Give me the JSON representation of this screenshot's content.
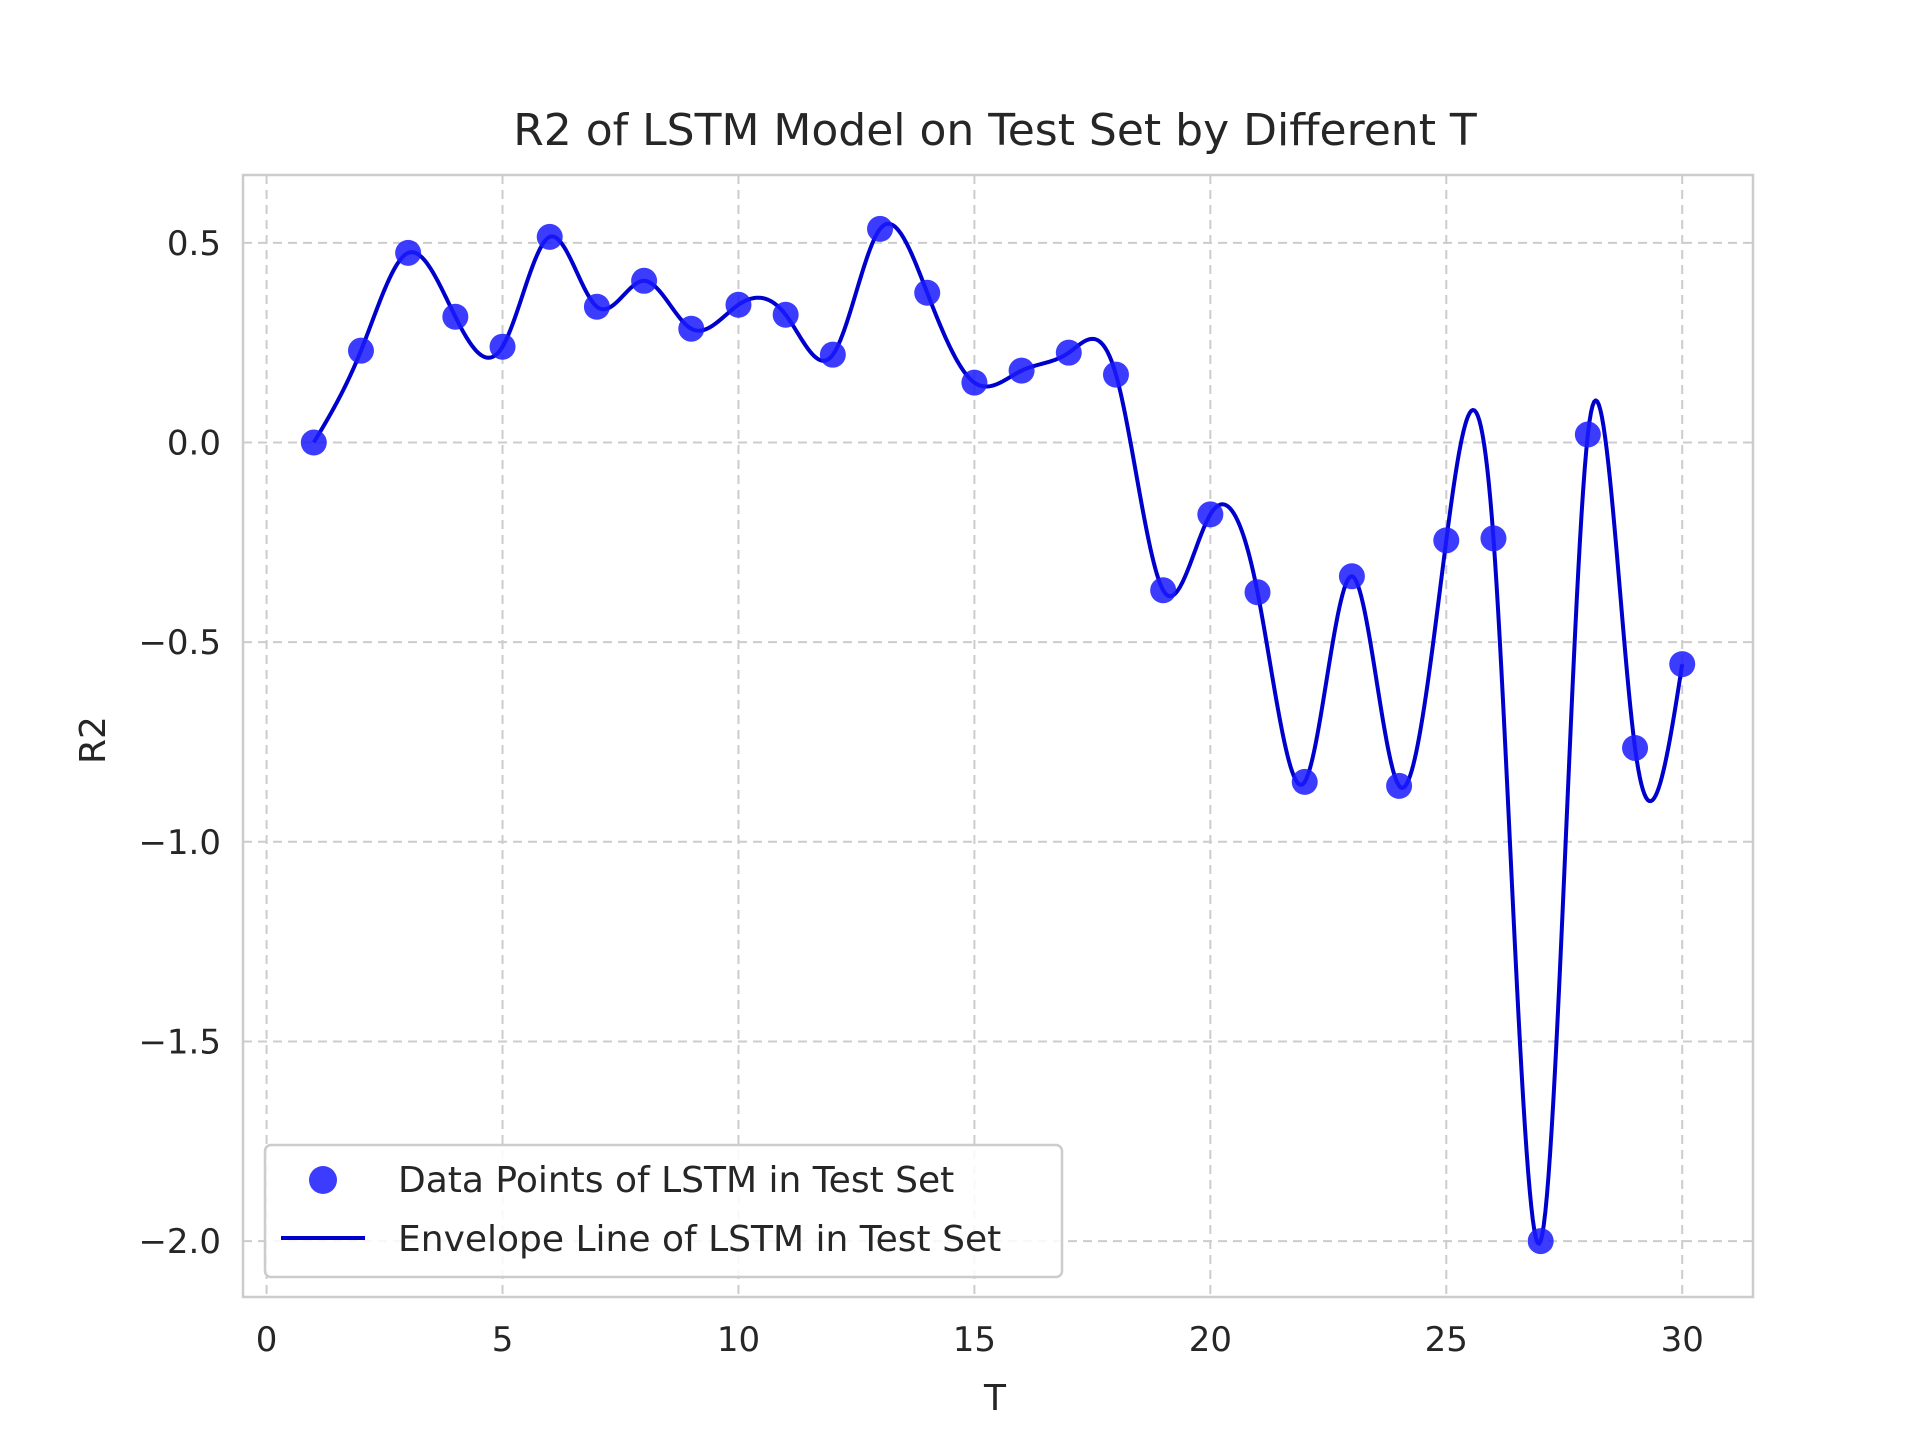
{
  "chart_data": {
    "type": "scatter",
    "title": "R2 of LSTM Model on Test Set by Different T",
    "xlabel": "T",
    "ylabel": "R2",
    "xlim": [
      -0.5,
      31.5
    ],
    "ylim": [
      -2.14,
      0.67
    ],
    "xticks": [
      0,
      5,
      10,
      15,
      20,
      25,
      30
    ],
    "yticks": [
      0.5,
      0.0,
      -0.5,
      -1.0,
      -1.5,
      -2.0
    ],
    "xtick_labels": [
      "0",
      "5",
      "10",
      "15",
      "20",
      "25",
      "30"
    ],
    "ytick_labels": [
      "0.5",
      "0.0",
      "−0.5",
      "−1.0",
      "−1.5",
      "−2.0"
    ],
    "grid": true,
    "legend_position": "lower-left",
    "series": [
      {
        "name": "Data Points of LSTM in Test Set",
        "kind": "scatter",
        "color": "#1a1aff",
        "x": [
          1,
          2,
          3,
          4,
          5,
          6,
          7,
          8,
          9,
          10,
          11,
          12,
          13,
          14,
          15,
          16,
          17,
          18,
          19,
          20,
          21,
          22,
          23,
          24,
          25,
          26,
          27,
          28,
          29,
          30
        ],
        "y": [
          0.0,
          0.23,
          0.475,
          0.315,
          0.24,
          0.515,
          0.34,
          0.405,
          0.285,
          0.345,
          0.32,
          0.22,
          0.535,
          0.375,
          0.15,
          0.18,
          0.225,
          0.17,
          -0.37,
          -0.18,
          -0.375,
          -0.85,
          -0.335,
          -0.86,
          -0.245,
          -0.24,
          -2.0,
          0.02,
          -0.765,
          -0.555
        ]
      },
      {
        "name": "Envelope Line of LSTM in Test Set",
        "kind": "line",
        "color": "#0000cc",
        "x": [
          1,
          2,
          3,
          4,
          5,
          6,
          7,
          8,
          9,
          10,
          11,
          12,
          13,
          14,
          15,
          16,
          17,
          18,
          19,
          20,
          21,
          22,
          23,
          24,
          25,
          26,
          27,
          28,
          29,
          30
        ],
        "y": [
          0.0,
          0.23,
          0.475,
          0.315,
          0.24,
          0.515,
          0.34,
          0.405,
          0.285,
          0.345,
          0.32,
          0.22,
          0.535,
          0.375,
          0.15,
          0.18,
          0.225,
          0.17,
          -0.37,
          -0.18,
          -0.375,
          -0.85,
          -0.335,
          -0.86,
          -0.245,
          -0.24,
          -2.0,
          0.02,
          -0.765,
          -0.555
        ]
      }
    ]
  }
}
